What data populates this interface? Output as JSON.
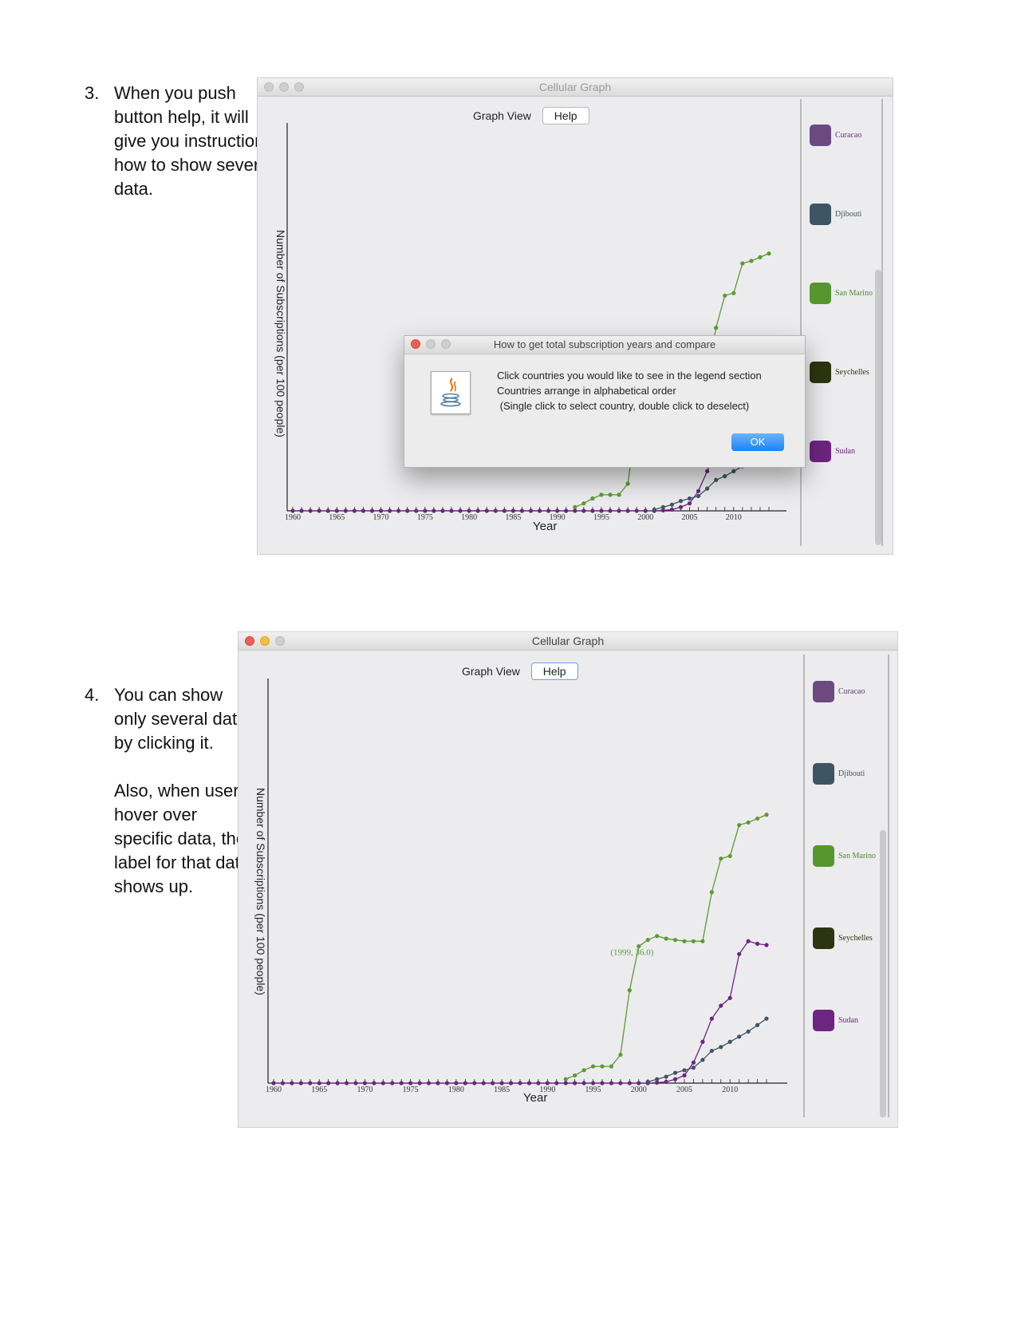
{
  "steps": [
    {
      "number": "3.",
      "paragraphs": [
        "When you push button help, it will give you instruction how to show several data."
      ]
    },
    {
      "number": "4.",
      "paragraphs": [
        "You can show only several data by clicking it.",
        "Also, when user hover over specific data, the label for that data shows up."
      ]
    }
  ],
  "app": {
    "window_title": "Cellular Graph",
    "graph_view_label": "Graph View",
    "help_button": "Help",
    "y_axis_label": "Number of Subscriptions (per 100 people)",
    "x_axis_label": "Year"
  },
  "legend": [
    {
      "name": "Curacao",
      "color": "#6c4a7f",
      "text_color": "#5a3c6e"
    },
    {
      "name": "Djibouti",
      "color": "#3e5566",
      "text_color": "#3e5566"
    },
    {
      "name": "San Marino",
      "color": "#57962f",
      "text_color": "#4d8a2a"
    },
    {
      "name": "Seychelles",
      "color": "#2d3510",
      "text_color": "#2d3510"
    },
    {
      "name": "Sudan",
      "color": "#6e2482",
      "text_color": "#6e2482"
    }
  ],
  "dialog": {
    "title": "How to get total subscription years and compare",
    "lines": [
      "Click countries you would like to see in the legend section",
      "Countries arrange in alphabetical order",
      " (Single click to select country, double click to deselect)"
    ],
    "ok_button": "OK"
  },
  "hover_label": "(1999, 36.0)",
  "chart_data": {
    "type": "line",
    "xlabel": "Year",
    "ylabel": "Number of Subscriptions (per 100 people)",
    "x_ticks": [
      "1960",
      "1965",
      "1970",
      "1975",
      "1980",
      "1985",
      "1990",
      "1995",
      "2000",
      "2005",
      "2010"
    ],
    "xlim": [
      1960,
      2014
    ],
    "ylim": [
      0,
      120
    ],
    "series": [
      {
        "name": "San Marino",
        "color": "#5b9b33",
        "x": [
          1992,
          1993,
          1994,
          1995,
          1996,
          1997,
          1998,
          1999,
          2000,
          2001,
          2002,
          2003,
          2004,
          2005,
          2006,
          2007,
          2008,
          2009,
          2010,
          2011,
          2012,
          2013,
          2014
        ],
        "y": [
          1.5,
          3,
          5,
          6.5,
          6.5,
          6.5,
          11,
          36,
          53,
          55.5,
          57,
          56,
          55.5,
          55,
          55,
          55,
          74,
          87,
          88,
          100,
          101,
          102.5,
          104
        ]
      },
      {
        "name": "Sudan",
        "color": "#6e2482",
        "x": [
          1960,
          1961,
          1962,
          1963,
          1964,
          1965,
          1966,
          1967,
          1968,
          1969,
          1970,
          1971,
          1972,
          1973,
          1974,
          1975,
          1976,
          1977,
          1978,
          1979,
          1980,
          1981,
          1982,
          1983,
          1984,
          1985,
          1986,
          1987,
          1988,
          1989,
          1990,
          1991,
          1992,
          1993,
          1994,
          1995,
          1996,
          1997,
          1998,
          1999,
          2000,
          2001,
          2002,
          2003,
          2004,
          2005,
          2006,
          2007,
          2008,
          2009,
          2010,
          2011,
          2012,
          2013,
          2014
        ],
        "y": [
          0,
          0,
          0,
          0,
          0,
          0,
          0,
          0,
          0,
          0,
          0,
          0,
          0,
          0,
          0,
          0,
          0,
          0,
          0,
          0,
          0,
          0,
          0,
          0,
          0,
          0,
          0,
          0,
          0,
          0,
          0,
          0,
          0,
          0,
          0,
          0,
          0,
          0,
          0,
          0,
          0,
          0,
          0.2,
          0.5,
          1.5,
          3,
          8,
          16,
          25,
          30,
          33,
          50,
          55,
          54,
          53.5
        ]
      },
      {
        "name": "Djibouti",
        "color": "#3e5566",
        "x": [
          2001,
          2002,
          2003,
          2004,
          2005,
          2006,
          2007,
          2008,
          2009,
          2010,
          2011,
          2012,
          2013,
          2014
        ],
        "y": [
          0.5,
          1.5,
          2.5,
          4,
          5,
          6,
          9,
          12.5,
          14,
          16,
          18,
          20,
          22.5,
          25
        ]
      }
    ]
  }
}
